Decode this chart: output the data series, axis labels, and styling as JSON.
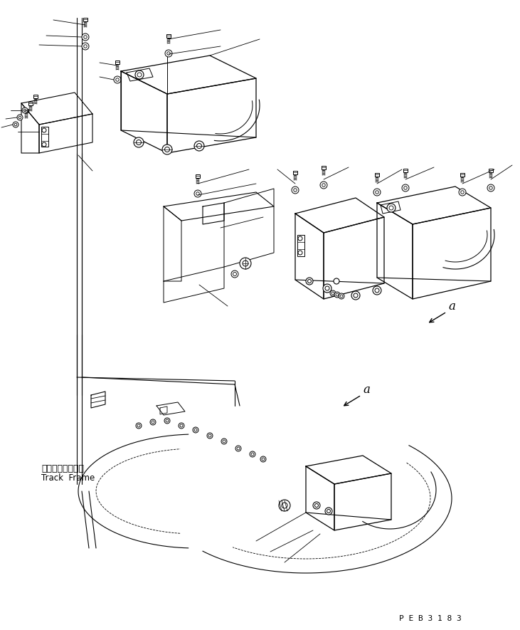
{
  "bg_color": "#ffffff",
  "line_color": "#000000",
  "label_track_frame_jp": "トラックフレーム",
  "label_track_frame_en": "Track  Frame",
  "watermark": "P E B 3 1 8 3"
}
